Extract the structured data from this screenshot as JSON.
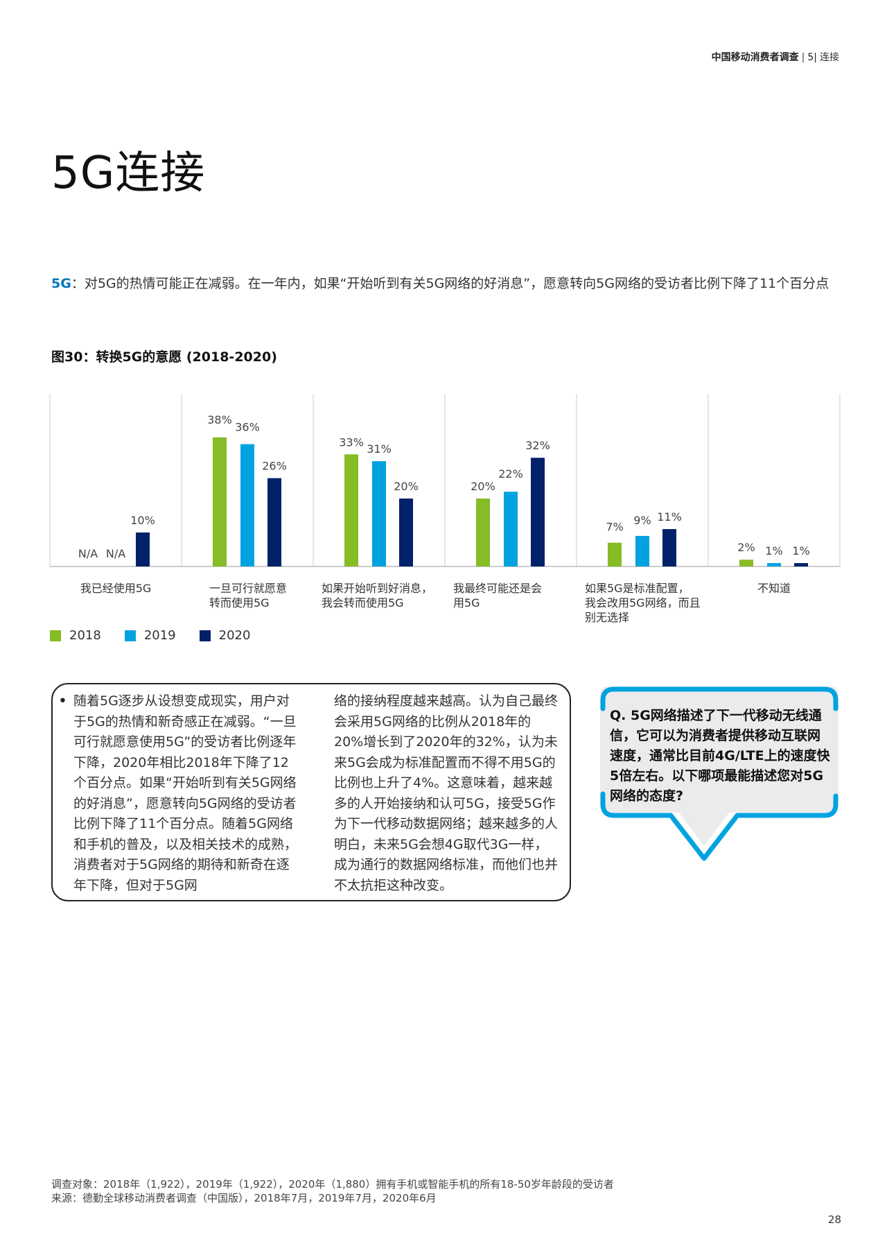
{
  "header": {
    "report": "中国移动消费者调查",
    "separator": "|",
    "page_section_no": "5|",
    "section": "连接"
  },
  "title": "5G连接",
  "intro": {
    "label": "5G",
    "colon": "：",
    "text": "对5G的热情可能正在减弱。在一年内，如果“开始听到有关5G网络的好消息”，愿意转向5G网络的受访者比例下降了11个百分点"
  },
  "figure_title": "图30：转换5G的意愿 (2018-2020)",
  "colors": {
    "2018": "#86bc25",
    "2019": "#00a3e0",
    "2020": "#012169",
    "accent": "#0076c0"
  },
  "chart_data": {
    "type": "bar",
    "categories": [
      "我已经使用5G",
      "一旦可行就愿意转而使用5G",
      "如果开始听到好消息，我会转而使用5G",
      "我最终可能还是会用5G",
      "如果5G是标准配置，我会改用5G网络，而且别无选择",
      "不知道"
    ],
    "category_lines": [
      [
        "我已经使用5G"
      ],
      [
        "一旦可行就愿意",
        "转而使用5G"
      ],
      [
        "如果开始听到好消息，",
        "我会转而使用5G"
      ],
      [
        "我最终可能还是会",
        "用5G"
      ],
      [
        "如果5G是标准配置，",
        "我会改用5G网络，而且",
        "别无选择"
      ],
      [
        "不知道"
      ]
    ],
    "series": [
      {
        "name": "2018",
        "values": [
          null,
          38,
          33,
          20,
          7,
          2
        ],
        "labels": [
          "N/A",
          "38%",
          "33%",
          "20%",
          "7%",
          "2%"
        ]
      },
      {
        "name": "2019",
        "values": [
          null,
          36,
          31,
          22,
          9,
          1
        ],
        "labels": [
          "N/A",
          "36%",
          "31%",
          "22%",
          "9%",
          "1%"
        ]
      },
      {
        "name": "2020",
        "values": [
          10,
          26,
          20,
          32,
          11,
          1
        ],
        "labels": [
          "10%",
          "26%",
          "20%",
          "32%",
          "11%",
          "1%"
        ]
      }
    ],
    "ylim": [
      0,
      40
    ],
    "unit": "%",
    "grid": false,
    "legend": "bottom-left"
  },
  "legend": [
    {
      "label": "2018",
      "color": "#86bc25"
    },
    {
      "label": "2019",
      "color": "#00a3e0"
    },
    {
      "label": "2020",
      "color": "#012169"
    }
  ],
  "bullet": "•",
  "body_col1": "随着5G逐步从设想变成现实，用户对于5G的热情和新奇感正在减弱。“一旦可行就愿意使用5G”的受访者比例逐年下降，2020年相比2018年下降了12个百分点。如果“开始听到有关5G网络的好消息”，愿意转向5G网络的受访者比例下降了11个百分点。随着5G网络和手机的普及，以及相关技术的成熟，消费者对于5G网络的期待和新奇在逐年下降，但对于5G网",
  "body_col2": "络的接纳程度越来越高。认为自己最终会采用5G网络的比例从2018年的20%增长到了2020年的32%，认为未来5G会成为标准配置而不得不用5G的比例也上升了4%。这意味着，越来越多的人开始接纳和认可5G，接受5G作为下一代移动数据网络；越来越多的人明白，未来5G会想4G取代3G一样，成为通行的数据网络标准，而他们也并不太抗拒这种改变。",
  "question": "Q. 5G网络描述了下一代移动无线通信，它可以为消费者提供移动互联网速度，通常比目前4G/LTE上的速度快5倍左右。以下哪项最能描述您对5G网络的态度?",
  "footer": {
    "line1": "调查对象：2018年（1,922），2019年（1,922），2020年（1,880）拥有手机或智能手机的所有18-50岁年龄段的受访者",
    "line2": "来源：德勤全球移动消费者调查（中国版），2018年7月，2019年7月，2020年6月"
  },
  "page_number": "28"
}
